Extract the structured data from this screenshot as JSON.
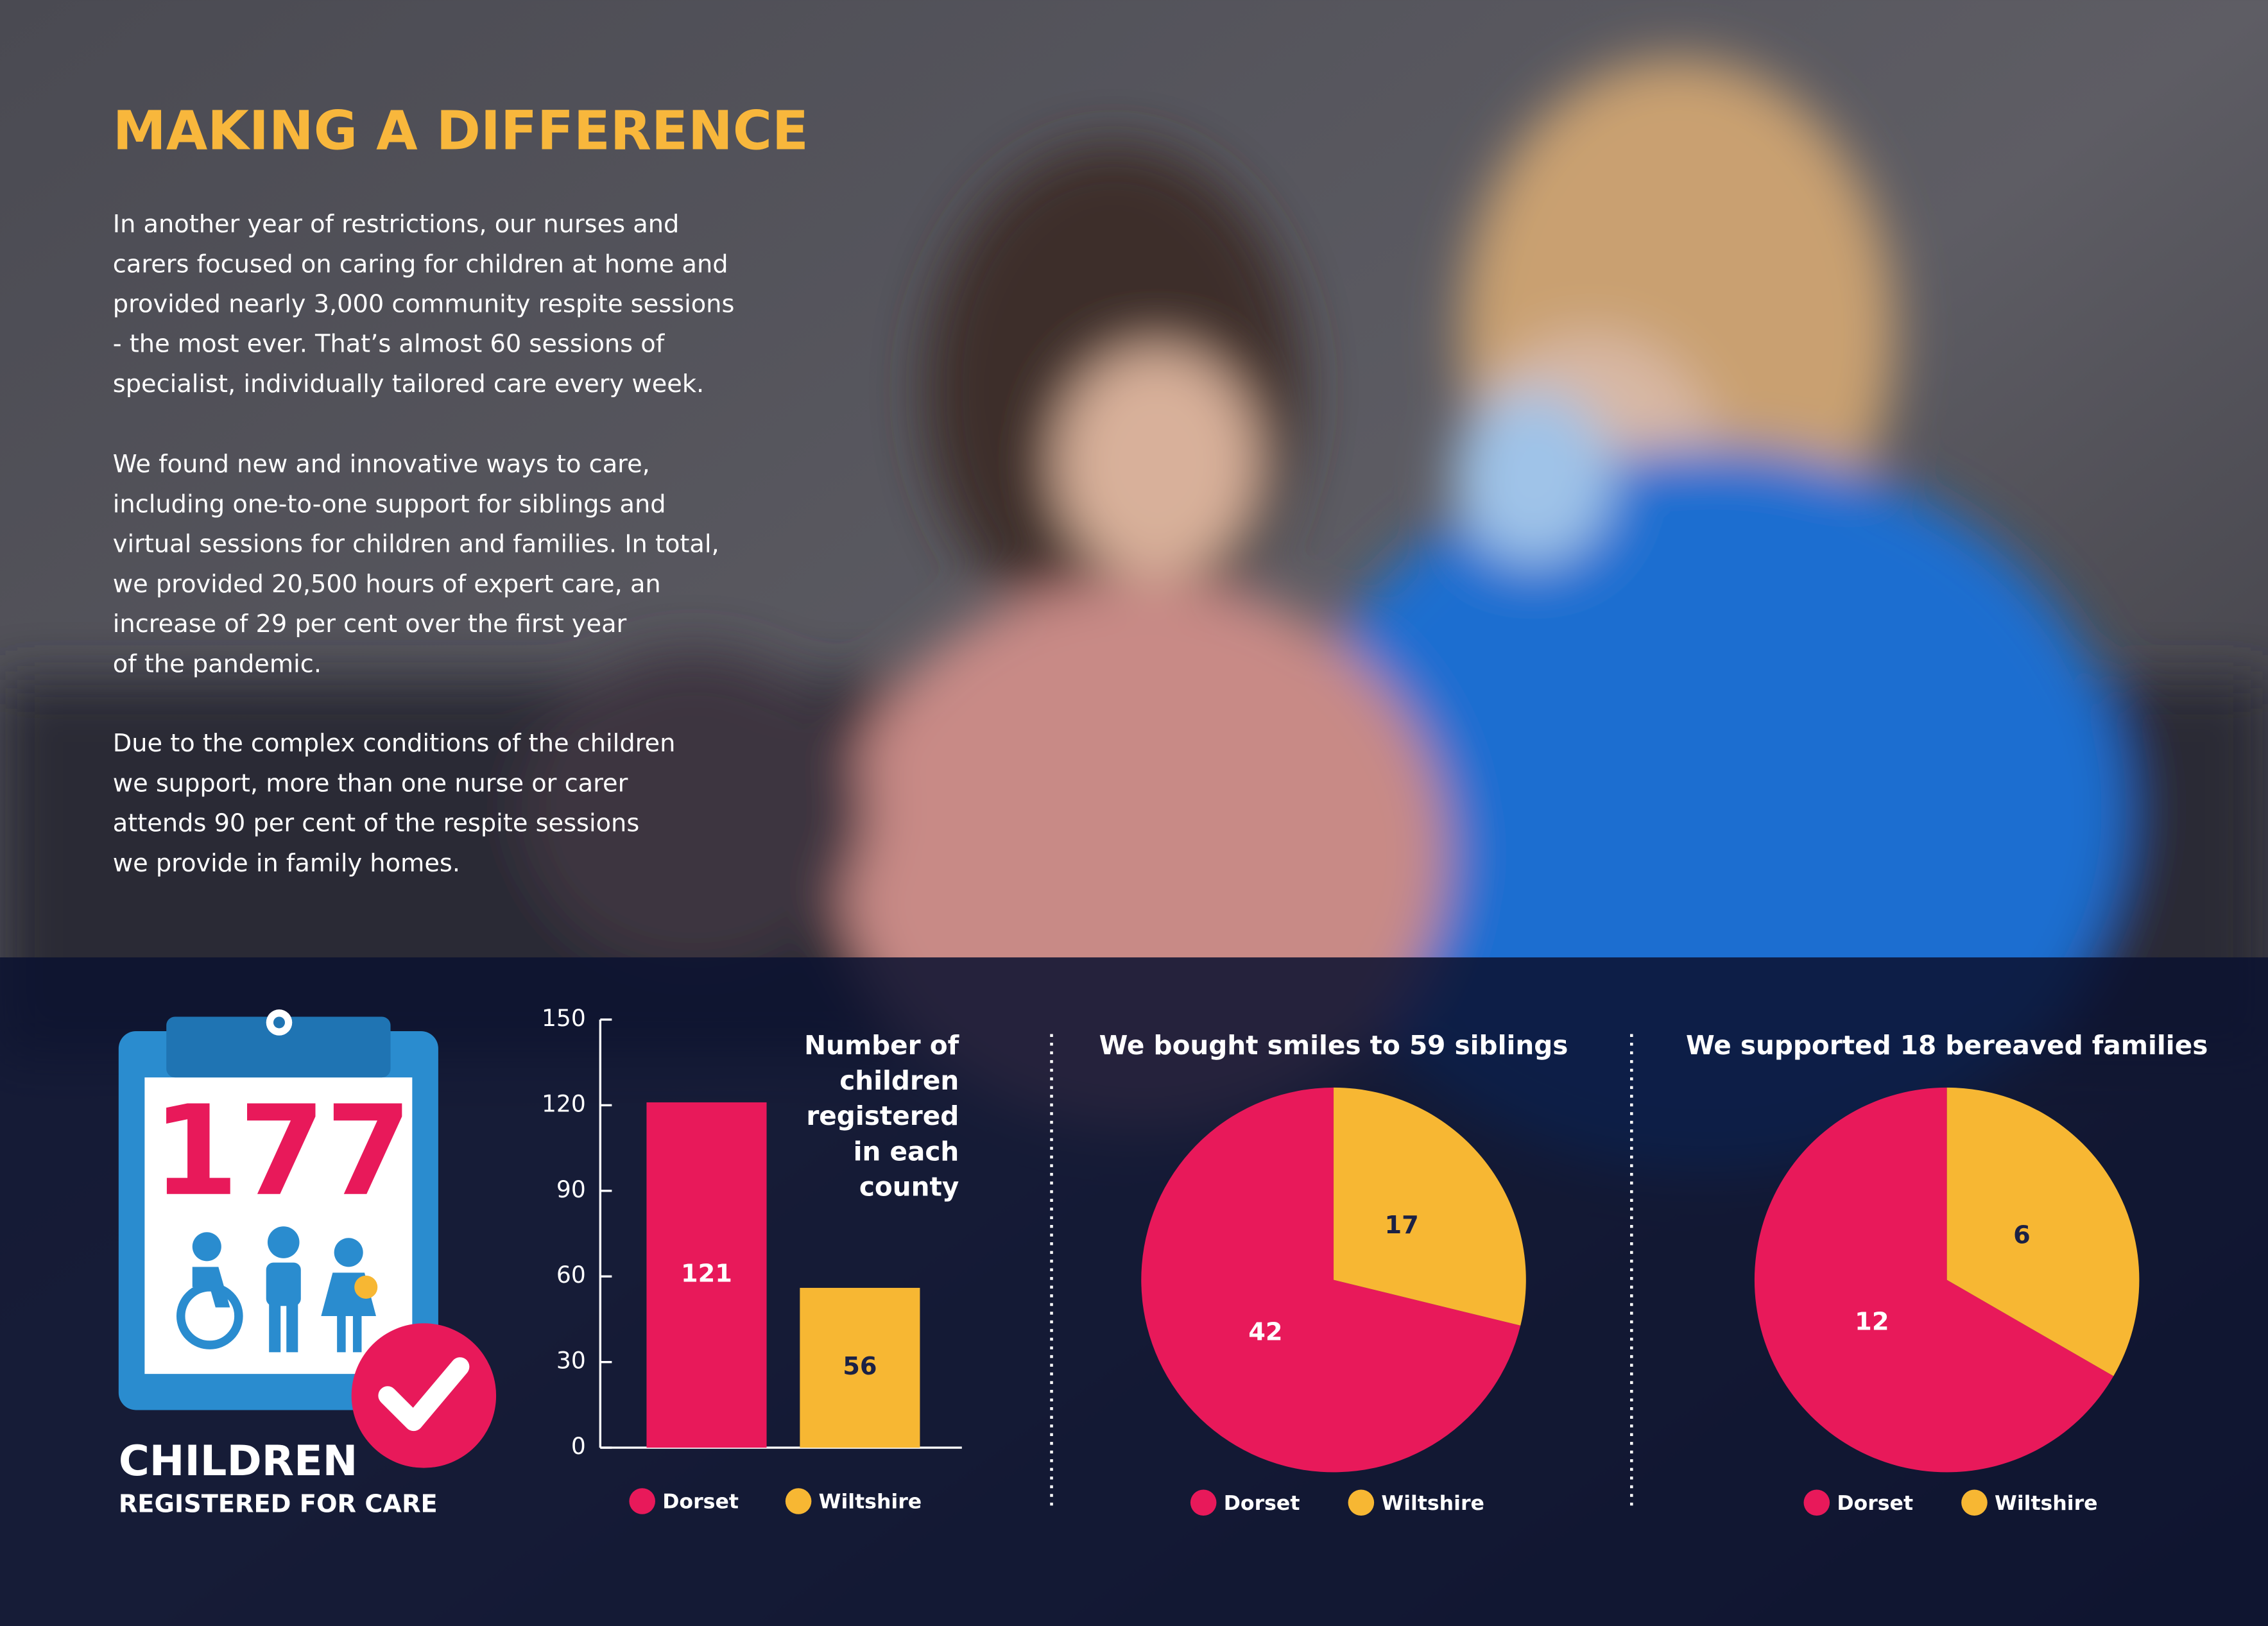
{
  "header": {
    "title": "MAKING A DIFFERENCE"
  },
  "paragraphs": [
    [
      "In another year of restrictions, our nurses and",
      "carers focused on caring for children at home and",
      "provided nearly 3,000 community respite sessions",
      "- the most ever. That’s almost 60 sessions of",
      "specialist, individually tailored care every week."
    ],
    [
      "We found new and innovative ways to care,",
      "including one-to-one support for siblings and",
      "virtual sessions for children and families. In total,",
      "we provided 20,500 hours of expert care, an",
      "increase of 29 per cent over the first year",
      "of the pandemic."
    ],
    [
      "Due to the complex conditions of the children",
      "we support, more than one nurse or carer",
      "attends 90 per cent of the respite sessions",
      "we provide in family homes."
    ]
  ],
  "stat": {
    "value": 177,
    "label": "CHILDREN",
    "sublabel": "REGISTERED FOR CARE"
  },
  "chart_data": [
    {
      "type": "bar",
      "title": "Number of children registered in each county",
      "categories": [
        "Dorset",
        "Wiltshire"
      ],
      "values": [
        121,
        56
      ],
      "colors": [
        "#e8195a",
        "#f7b733"
      ],
      "ylim": [
        0,
        150
      ],
      "yticks": [
        0,
        30,
        60,
        90,
        120,
        150
      ]
    },
    {
      "type": "pie",
      "title": "We bought smiles to 59 siblings",
      "categories": [
        "Dorset",
        "Wiltshire"
      ],
      "values": [
        42,
        17
      ],
      "colors": [
        "#e8195a",
        "#f7b733"
      ]
    },
    {
      "type": "pie",
      "title": "We supported 18 bereaved families",
      "categories": [
        "Dorset",
        "Wiltshire"
      ],
      "values": [
        12,
        6
      ],
      "colors": [
        "#e8195a",
        "#f7b733"
      ]
    }
  ]
}
